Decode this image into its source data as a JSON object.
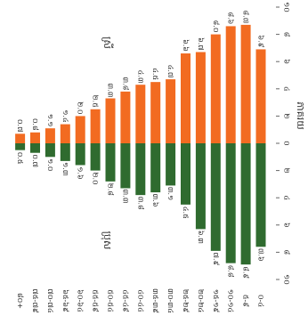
{
  "chart_data": {
    "type": "pyramid",
    "axis_label": "ភាគរយ",
    "categories": [
      "០-៤",
      "៥-៩",
      "១០-១៤",
      "១៥-១៩",
      "២០-២៤",
      "២៥-២៩",
      "៣០-៣៤",
      "៣៥-៣៩",
      "៤០-៤៤",
      "៤៥-៤៩",
      "៥០-៥៤",
      "៥៥-៥៩",
      "៦០-៦៤",
      "៦៥-៦៩",
      "៧០-៧៤",
      "៧៥-៧៩",
      "៨០+"
    ],
    "series": [
      {
        "name": "ស្រី",
        "color": "#f26b21",
        "values": [
          6.9,
          8.7,
          8.6,
          8.0,
          6.7,
          6.6,
          4.7,
          4.5,
          4.3,
          3.8,
          3.3,
          2.5,
          2.0,
          1.4,
          1.1,
          0.8,
          0.7
        ],
        "value_labels": [
          "៦.៩",
          "៨.៧",
          "៨.៦",
          "៨.០",
          "៦.៧",
          "៦.៦",
          "៤.៧",
          "៤.៥",
          "៤.៣",
          "៣.៨",
          "៣.៣",
          "២.៥",
          "២.០",
          "១.៤",
          "១.១",
          "០.៨",
          "០.៧"
        ]
      },
      {
        "name": "ប្រុស",
        "color": "#2f6b2f",
        "values": [
          -7.6,
          -8.9,
          -8.8,
          -7.9,
          -6.3,
          -4.5,
          -3.1,
          -3.6,
          -3.8,
          -3.3,
          -2.8,
          -2.0,
          -1.6,
          -1.3,
          -1.0,
          -0.7,
          -0.5
        ],
        "value_labels": [
          "៧.៦",
          "៨.៩",
          "៨.៨",
          "៧.៩",
          "៦.៣",
          "៤.៥",
          "៣.១",
          "៣.៦",
          "៣.៨",
          "៣.៣",
          "២.៨",
          "២.០",
          "១.៦",
          "១.៣",
          "១.០",
          "០.៧",
          "០.៥"
        ]
      }
    ],
    "ylim": [
      -10,
      10
    ],
    "yticks": [
      {
        "value": 10,
        "label": "១០"
      },
      {
        "value": 8,
        "label": "៨"
      },
      {
        "value": 6,
        "label": "៦"
      },
      {
        "value": 4,
        "label": "៤"
      },
      {
        "value": 2,
        "label": "២"
      },
      {
        "value": 0,
        "label": "០"
      },
      {
        "value": -2,
        "label": "២"
      },
      {
        "value": -4,
        "label": "៤"
      },
      {
        "value": -6,
        "label": "៦"
      },
      {
        "value": -8,
        "label": "៨"
      },
      {
        "value": -10,
        "label": "១០"
      }
    ]
  }
}
